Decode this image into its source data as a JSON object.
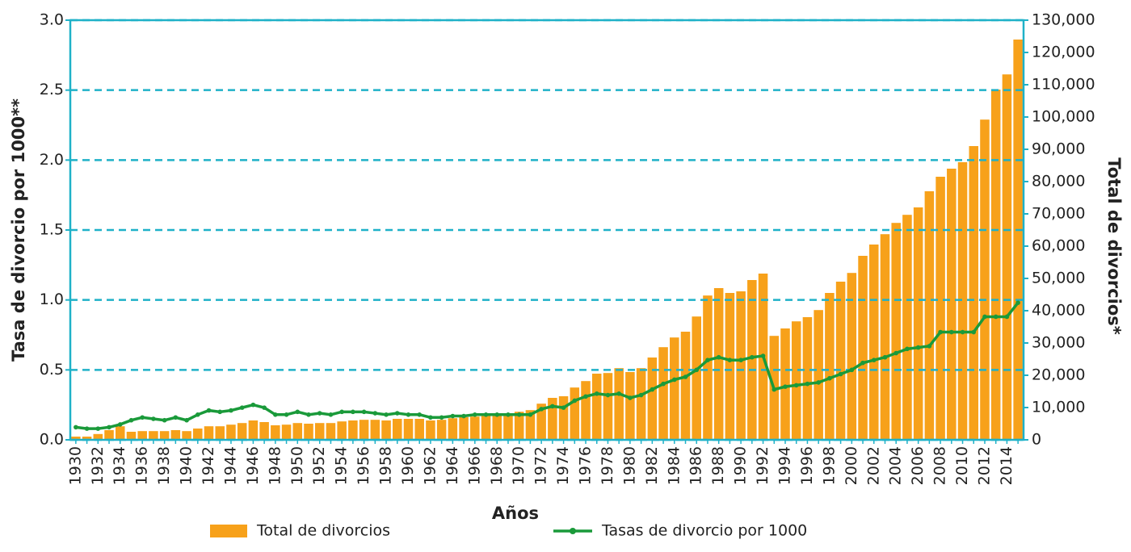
{
  "chart_data": {
    "type": "bar_line",
    "x_label": "Años",
    "y_label": "Tasa de divorcio por 1000**",
    "y2_label": "Total de divorcios*",
    "categories": [
      "1930",
      null,
      "1932",
      null,
      "1934",
      null,
      "1936",
      null,
      "1938",
      null,
      "1940",
      null,
      "1942",
      null,
      "1944",
      null,
      "1946",
      null,
      "1948",
      null,
      "1950",
      null,
      "1952",
      null,
      "1954",
      null,
      "1956",
      null,
      "1958",
      null,
      "1960",
      null,
      "1962",
      null,
      "1964",
      null,
      "1966",
      null,
      "1968",
      null,
      "1970",
      null,
      "1972",
      null,
      "1974",
      null,
      "1976",
      null,
      "1978",
      null,
      "1980",
      null,
      "1982",
      null,
      "1984",
      null,
      "1986",
      null,
      "1988",
      null,
      "1990",
      null,
      "1992",
      null,
      "1994",
      null,
      "1996",
      null,
      "1998",
      null,
      "2000",
      null,
      "2002",
      null,
      "2004",
      null,
      "2006",
      null,
      "2008",
      null,
      "2010",
      null,
      "2012",
      null,
      "2014",
      null
    ],
    "series": [
      {
        "name": "Total de divorcios",
        "type": "bar",
        "axis": "y2",
        "color": "#f7a11a",
        "values": [
          1000,
          1000,
          1800,
          3000,
          4200,
          2500,
          2700,
          2700,
          2700,
          3000,
          2700,
          3500,
          4200,
          4200,
          4700,
          5200,
          6000,
          5500,
          4500,
          4700,
          5200,
          5000,
          5200,
          5200,
          5700,
          6000,
          6200,
          6200,
          6000,
          6500,
          6500,
          6500,
          6000,
          6200,
          6700,
          7000,
          7200,
          7500,
          7700,
          8200,
          8700,
          9200,
          11200,
          13000,
          13500,
          16200,
          18200,
          20500,
          20700,
          22200,
          21000,
          22200,
          25500,
          28700,
          31700,
          33500,
          38200,
          44700,
          47000,
          45500,
          46000,
          49500,
          51500,
          32200,
          34500,
          36700,
          38000,
          40200,
          45500,
          49000,
          51700,
          57000,
          60500,
          63700,
          67200,
          69700,
          72000,
          77000,
          81500,
          84000,
          86000,
          91000,
          99200,
          108500,
          113200,
          124000
        ]
      },
      {
        "name": "Tasas de divorcio por 1000",
        "type": "line",
        "axis": "y",
        "color": "#1a9a3a",
        "values": [
          0.09,
          0.08,
          0.08,
          0.09,
          0.11,
          0.14,
          0.16,
          0.15,
          0.14,
          0.16,
          0.14,
          0.18,
          0.21,
          0.2,
          0.21,
          0.23,
          0.25,
          0.23,
          0.18,
          0.18,
          0.2,
          0.18,
          0.19,
          0.18,
          0.2,
          0.2,
          0.2,
          0.19,
          0.18,
          0.19,
          0.18,
          0.18,
          0.16,
          0.16,
          0.17,
          0.17,
          0.18,
          0.18,
          0.18,
          0.18,
          0.18,
          0.18,
          0.22,
          0.24,
          0.23,
          0.28,
          0.31,
          0.33,
          0.32,
          0.33,
          0.3,
          0.32,
          0.36,
          0.4,
          0.43,
          0.45,
          0.5,
          0.57,
          0.59,
          0.57,
          0.57,
          0.59,
          0.6,
          0.36,
          0.38,
          0.39,
          0.4,
          0.41,
          0.44,
          0.47,
          0.5,
          0.55,
          0.57,
          0.59,
          0.62,
          0.65,
          0.66,
          0.67,
          0.77,
          0.77,
          0.77,
          0.77,
          0.88,
          0.88,
          0.88,
          0.98
        ]
      }
    ],
    "ylim": [
      0,
      3
    ],
    "yticks": [
      {
        "value": 0,
        "label": "0.0"
      },
      0.5,
      {
        "value": 1,
        "label": "1.0"
      },
      1.5,
      {
        "value": 2,
        "label": "2.0"
      },
      2.5,
      {
        "value": 3,
        "label": "3.0"
      }
    ],
    "y2lim": [
      0,
      130000
    ],
    "y2ticks": [
      0,
      {
        "value": 10000,
        "label": "10,000"
      },
      {
        "value": 20000,
        "label": "20,000"
      },
      {
        "value": 30000,
        "label": "30,000"
      },
      {
        "value": 40000,
        "label": "40,000"
      },
      {
        "value": 50000,
        "label": "50,000"
      },
      {
        "value": 60000,
        "label": "60,000"
      },
      {
        "value": 70000,
        "label": "70,000"
      },
      {
        "value": 80000,
        "label": "80,000"
      },
      {
        "value": 90000,
        "label": "90,000"
      },
      {
        "value": 100000,
        "label": "100,000"
      },
      {
        "value": 110000,
        "label": "110,000"
      },
      {
        "value": 120000,
        "label": "120,000"
      },
      {
        "value": 130000,
        "label": "130,000"
      }
    ],
    "grid": true,
    "grid_color": "#1fb1c8",
    "legend": "bottom"
  }
}
